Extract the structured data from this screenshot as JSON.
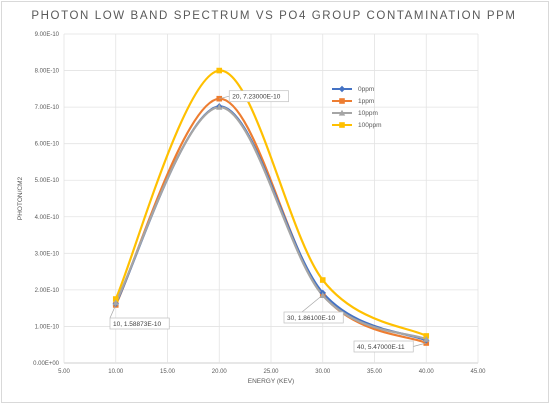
{
  "chart_data": {
    "type": "line",
    "title": "PHOTON LOW BAND SPECTRUM VS PO4 GROUP CONTAMINATION PPM",
    "xlabel": "ENERGY (KEV)",
    "ylabel": "PHOTON/CM2",
    "xlim": [
      5,
      45
    ],
    "ylim": [
      0,
      9e-10
    ],
    "x_ticks": [
      "5.00",
      "10.00",
      "15.00",
      "20.00",
      "25.00",
      "30.00",
      "35.00",
      "40.00",
      "45.00"
    ],
    "y_ticks": [
      "0.00E+00",
      "1.00E-10",
      "2.00E-10",
      "3.00E-10",
      "4.00E-10",
      "5.00E-10",
      "6.00E-10",
      "7.00E-10",
      "8.00E-10",
      "9.00E-10"
    ],
    "grid": true,
    "legend": "right",
    "x": [
      10,
      20,
      30,
      40
    ],
    "series": [
      {
        "name": "0ppm",
        "color": "#4472c4",
        "marker": "diamond",
        "values": [
          1.62e-10,
          7.02e-10,
          1.92e-10,
          6.2e-11
        ]
      },
      {
        "name": "1ppm",
        "color": "#ed7d31",
        "marker": "square",
        "values": [
          1.58873e-10,
          7.23e-10,
          1.861e-10,
          5.47e-11
        ]
      },
      {
        "name": "10ppm",
        "color": "#a5a5a5",
        "marker": "triangle",
        "values": [
          1.65e-10,
          7e-10,
          1.85e-10,
          6.5e-11
        ]
      },
      {
        "name": "100ppm",
        "color": "#ffc000",
        "marker": "square",
        "values": [
          1.75e-10,
          8e-10,
          2.27e-10,
          7.4e-11
        ]
      }
    ],
    "annotations": [
      {
        "text": "20, 7.23000E-10",
        "x": 20,
        "y": 7.23e-10
      },
      {
        "text": "10, 1.58873E-10",
        "x": 10,
        "y": 1.58873e-10
      },
      {
        "text": "30, 1.86100E-10",
        "x": 30,
        "y": 1.861e-10
      },
      {
        "text": "40, 5.47000E-11",
        "x": 40,
        "y": 5.47e-11
      }
    ]
  }
}
